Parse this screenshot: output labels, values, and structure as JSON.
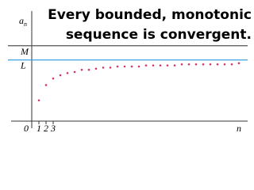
{
  "chart_data": {
    "type": "scatter",
    "title_lines": [
      "Every bounded, monotonic",
      "sequence is convergent."
    ],
    "ylabel": {
      "main": "a",
      "sub": "n"
    },
    "xlabel": "n",
    "x": [
      1,
      2,
      3,
      4,
      5,
      6,
      7,
      8,
      9,
      10,
      11,
      12,
      13,
      14,
      15,
      16,
      17,
      18,
      19,
      20,
      21,
      22,
      23,
      24,
      25,
      26,
      27,
      28,
      29
    ],
    "values": [
      1.9,
      3.3,
      3.9,
      4.2,
      4.4,
      4.5,
      4.7,
      4.7,
      4.8,
      4.9,
      4.9,
      5.0,
      5.0,
      5.0,
      5.0,
      5.1,
      5.1,
      5.1,
      5.1,
      5.1,
      5.2,
      5.2,
      5.2,
      5.2,
      5.2,
      5.2,
      5.2,
      5.2,
      5.3
    ],
    "color": "#d6336c",
    "xlim": [
      0,
      30
    ],
    "ylim": [
      0,
      10
    ],
    "xticks": [
      0,
      1,
      2,
      3
    ],
    "yticks": [
      {
        "value": 6.9,
        "label": "M"
      },
      {
        "value": 5.6,
        "label": "L"
      }
    ],
    "ytick_line_colors": [
      "#555555",
      "#39a0dd"
    ]
  }
}
